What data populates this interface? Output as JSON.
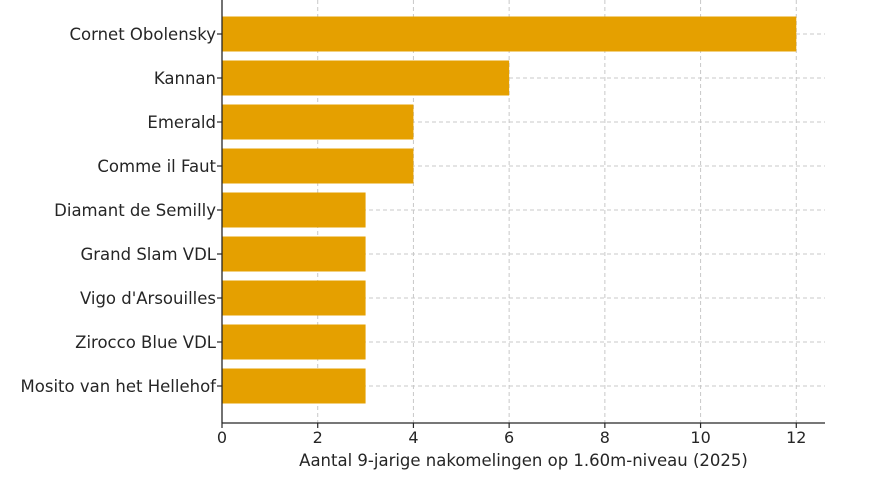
{
  "chart_data": {
    "type": "bar",
    "orientation": "horizontal",
    "title": "",
    "xlabel": "Aantal 9-jarige nakomelingen op 1.60m-niveau (2025)",
    "ylabel": "",
    "categories": [
      "Cornet Obolensky",
      "Kannan",
      "Emerald",
      "Comme il Faut",
      "Diamant de Semilly",
      "Grand Slam VDL",
      "Vigo d'Arsouilles",
      "Zirocco Blue VDL",
      "Mosito van het Hellehof"
    ],
    "values": [
      12,
      6,
      4,
      4,
      3,
      3,
      3,
      3,
      3
    ],
    "xlim": [
      0,
      12.6
    ],
    "xticks": [
      "0",
      "2",
      "4",
      "6",
      "8",
      "10",
      "12"
    ],
    "grid": true,
    "bar_color": "#E5A000",
    "legend": "none"
  }
}
